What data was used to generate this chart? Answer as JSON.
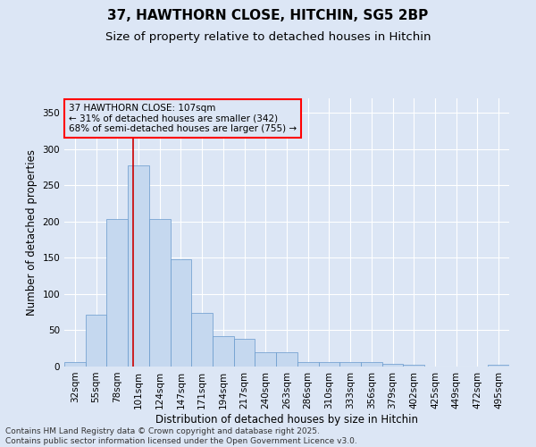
{
  "title_line1": "37, HAWTHORN CLOSE, HITCHIN, SG5 2BP",
  "title_line2": "Size of property relative to detached houses in Hitchin",
  "xlabel": "Distribution of detached houses by size in Hitchin",
  "ylabel": "Number of detached properties",
  "background_color": "#dce6f5",
  "bar_color": "#c5d8ef",
  "bar_edge_color": "#6699cc",
  "annotation_line1": "37 HAWTHORN CLOSE: 107sqm",
  "annotation_line2": "← 31% of detached houses are smaller (342)",
  "annotation_line3": "68% of semi-detached houses are larger (755) →",
  "vline_color": "#cc0000",
  "vline_pos": 2.75,
  "categories": [
    "32sqm",
    "55sqm",
    "78sqm",
    "101sqm",
    "124sqm",
    "147sqm",
    "171sqm",
    "194sqm",
    "217sqm",
    "240sqm",
    "263sqm",
    "286sqm",
    "310sqm",
    "333sqm",
    "356sqm",
    "379sqm",
    "402sqm",
    "425sqm",
    "449sqm",
    "472sqm",
    "495sqm"
  ],
  "values": [
    6,
    72,
    204,
    278,
    204,
    148,
    74,
    42,
    38,
    20,
    20,
    6,
    6,
    6,
    6,
    4,
    2,
    0,
    0,
    0,
    2
  ],
  "ylim": [
    0,
    370
  ],
  "yticks": [
    0,
    50,
    100,
    150,
    200,
    250,
    300,
    350
  ],
  "footer_line1": "Contains HM Land Registry data © Crown copyright and database right 2025.",
  "footer_line2": "Contains public sector information licensed under the Open Government Licence v3.0.",
  "title_fontsize": 11,
  "subtitle_fontsize": 9.5,
  "axis_label_fontsize": 8.5,
  "tick_fontsize": 7.5,
  "annotation_fontsize": 7.5,
  "footer_fontsize": 6.5
}
